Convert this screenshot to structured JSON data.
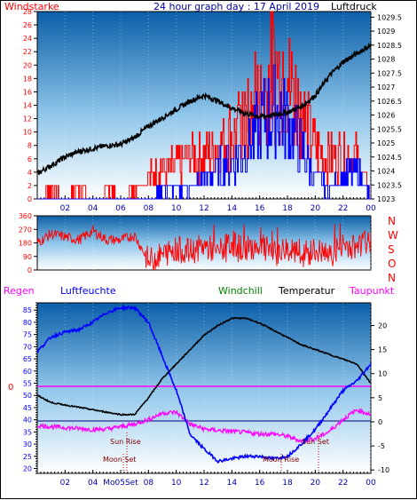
{
  "colors": {
    "wind": "#ff0000",
    "gust": "#0000ff",
    "pressure": "#000000",
    "humidity": "#0000ff",
    "windchill": "#008000",
    "temperature": "#000000",
    "dewpoint": "#ff00ff",
    "label_blue": "#0000aa",
    "label_red": "#ff0000"
  },
  "top_panel": {
    "title": "24 hour graph day : 17 April 2019",
    "left_label": "Windstarke",
    "right_label": "Luftdruck"
  },
  "dir_panel": {
    "letters": [
      "N",
      "W",
      "S",
      "O",
      "N"
    ]
  },
  "bottom_panel": {
    "legend_regen": "Regen",
    "legend_luftfeuchte": "Luftfeuchte",
    "legend_windchill": "Windchill",
    "legend_temperatur": "Temperatur",
    "legend_taupunkt": "Taupunkt",
    "zero_label": "0",
    "sunrise_label": "Sun Rise",
    "sunset_label": "Sun Set",
    "moonset_label": "Moon Set",
    "moonrise_label": "Moon Rise",
    "tick_time_label": "Mo05Set"
  },
  "chart_data": [
    {
      "type": "line",
      "title": "24 hour graph day : 17 April 2019",
      "x_ticks": [
        "02",
        "04",
        "06",
        "08",
        "10",
        "12",
        "14",
        "16",
        "18",
        "20",
        "22",
        "00"
      ],
      "y_left": {
        "label": "Windstarke",
        "ticks": [
          "0",
          "2",
          "4",
          "6",
          "8",
          "10",
          "12",
          "14",
          "16",
          "18",
          "20",
          "22",
          "24",
          "26",
          "28"
        ],
        "range": [
          0,
          28
        ]
      },
      "y_right": {
        "label": "Luftdruck",
        "ticks": [
          "1023",
          "1023.5",
          "1024",
          "1024.5",
          "1025",
          "1025.5",
          "1026",
          "1026.5",
          "1027",
          "1027.5",
          "1028",
          "1028.5",
          "1029",
          "1029.5"
        ],
        "range": [
          1023,
          1029.7
        ]
      },
      "series": [
        {
          "name": "Luftdruck",
          "axis": "right",
          "x": [
            0,
            1,
            2,
            3,
            4,
            5,
            6,
            7,
            8,
            9,
            10,
            11,
            12,
            13,
            14,
            15,
            16,
            17,
            18,
            19,
            20,
            21,
            22,
            23,
            24
          ],
          "y": [
            1023.9,
            1024.2,
            1024.5,
            1024.7,
            1024.8,
            1024.9,
            1024.95,
            1025.2,
            1025.6,
            1025.9,
            1026.2,
            1026.5,
            1026.7,
            1026.5,
            1026.25,
            1026.05,
            1025.95,
            1026.0,
            1026.1,
            1026.3,
            1026.7,
            1027.4,
            1027.9,
            1028.2,
            1028.5
          ]
        },
        {
          "name": "Wind",
          "axis": "left",
          "x": [
            0,
            1,
            2,
            3,
            4,
            5,
            6,
            7,
            8,
            9,
            10,
            11,
            12,
            13,
            14,
            15,
            16,
            17,
            18,
            19,
            20,
            21,
            22,
            23,
            24
          ],
          "y": [
            0,
            2,
            0,
            2,
            0,
            2,
            0,
            2,
            4,
            6,
            6,
            8,
            8,
            10,
            12,
            14,
            18,
            24,
            22,
            16,
            10,
            8,
            8,
            8,
            0
          ]
        },
        {
          "name": "Gust",
          "axis": "left",
          "x": [
            0,
            1,
            2,
            3,
            4,
            5,
            6,
            7,
            8,
            9,
            10,
            11,
            12,
            13,
            14,
            15,
            16,
            17,
            18,
            19,
            20,
            21,
            22,
            23,
            24
          ],
          "y": [
            0,
            0,
            0,
            0,
            0,
            0,
            0,
            0,
            0,
            2,
            2,
            2,
            4,
            6,
            8,
            10,
            14,
            18,
            16,
            10,
            4,
            2,
            4,
            6,
            0
          ]
        }
      ]
    },
    {
      "type": "line",
      "x_ticks": [
        "02",
        "04",
        "06",
        "08",
        "10",
        "12",
        "14",
        "16",
        "18",
        "20",
        "22",
        "00"
      ],
      "y_left": {
        "ticks": [
          "0",
          "90",
          "180",
          "270",
          "360"
        ],
        "range": [
          0,
          360
        ]
      },
      "series": [
        {
          "name": "Windrichtung",
          "x": [
            0,
            1,
            2,
            3,
            4,
            5,
            6,
            7,
            8,
            9,
            10,
            11,
            12,
            13,
            14,
            15,
            16,
            17,
            18,
            19,
            20,
            21,
            22,
            23,
            24
          ],
          "y": [
            180,
            240,
            220,
            200,
            260,
            200,
            200,
            230,
            60,
            100,
            140,
            120,
            160,
            120,
            180,
            140,
            170,
            100,
            150,
            80,
            130,
            90,
            170,
            150,
            200
          ]
        }
      ]
    },
    {
      "type": "line",
      "x_ticks": [
        "02",
        "04",
        "06",
        "08",
        "10",
        "12",
        "14",
        "16",
        "18",
        "20",
        "22",
        "00"
      ],
      "y_left": {
        "label": "Luftfeuchte",
        "ticks": [
          "20",
          "25",
          "30",
          "35",
          "40",
          "45",
          "50",
          "55",
          "60",
          "65",
          "70",
          "75",
          "80",
          "85"
        ],
        "range": [
          18,
          88
        ]
      },
      "y_right": {
        "ticks": [
          "-10",
          "-5",
          "0",
          "5",
          "10",
          "15",
          "20"
        ],
        "range": [
          -10.7,
          24.7
        ]
      },
      "series": [
        {
          "name": "Luftfeuchte",
          "axis": "left",
          "x": [
            0,
            1,
            2,
            3,
            4,
            5,
            6,
            7,
            8,
            9,
            10,
            11,
            12,
            13,
            14,
            15,
            16,
            17,
            18,
            19,
            20,
            21,
            22,
            23,
            24
          ],
          "y": [
            68,
            74,
            76,
            77,
            80,
            84,
            86,
            86,
            80,
            66,
            52,
            34,
            28,
            23,
            24,
            25,
            25,
            24,
            25,
            30,
            36,
            44,
            52,
            56,
            63
          ]
        },
        {
          "name": "Temperatur",
          "axis": "right",
          "x": [
            0,
            1,
            2,
            3,
            4,
            5,
            6,
            7,
            8,
            9,
            10,
            11,
            12,
            13,
            14,
            15,
            16,
            17,
            18,
            19,
            20,
            21,
            22,
            23,
            24
          ],
          "y": [
            5.5,
            4.0,
            3.5,
            3.0,
            2.5,
            2.0,
            1.5,
            1.5,
            5.0,
            9.0,
            12.0,
            15.0,
            18.0,
            20.0,
            21.5,
            21.5,
            20.5,
            19.0,
            17.5,
            16.0,
            15.0,
            14.0,
            13.0,
            12.0,
            8.0
          ]
        },
        {
          "name": "Taupunkt",
          "axis": "right",
          "x": [
            0,
            1,
            2,
            3,
            4,
            5,
            6,
            7,
            8,
            9,
            10,
            11,
            12,
            13,
            14,
            15,
            16,
            17,
            18,
            19,
            20,
            21,
            22,
            23,
            24
          ],
          "y": [
            -0.8,
            -1.0,
            -1.2,
            -1.4,
            -1.6,
            -1.5,
            -1.0,
            -0.5,
            0.5,
            1.8,
            2.0,
            -0.5,
            -1.5,
            -1.8,
            -2.0,
            -2.2,
            -2.5,
            -2.5,
            -3.0,
            -4.0,
            -3.5,
            -2.0,
            0.5,
            2.5,
            1.5
          ]
        }
      ]
    }
  ]
}
